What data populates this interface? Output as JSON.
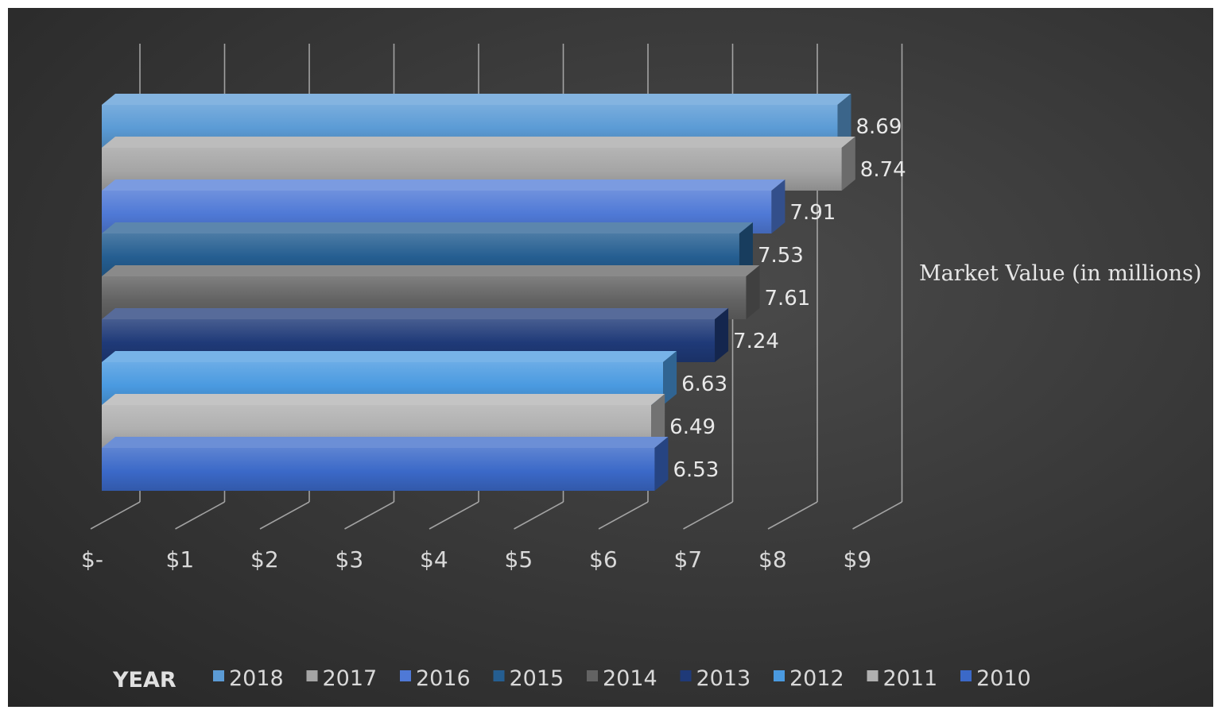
{
  "chart_data": {
    "type": "bar",
    "orientation": "horizontal",
    "style": "3d-clustered",
    "xlim": [
      0,
      9
    ],
    "x_ticks": [
      "$-",
      "$1",
      "$2",
      "$3",
      "$4",
      "$5",
      "$6",
      "$7",
      "$8",
      "$9"
    ],
    "axis_title": "Market Value (in millions)",
    "legend_title": "YEAR",
    "legend_position": "bottom",
    "grid": true,
    "series": [
      {
        "name": "2018",
        "value": 8.69,
        "label": "8.69",
        "color": "#5b9bd5"
      },
      {
        "name": "2017",
        "value": 8.74,
        "label": "8.74",
        "color": "#a5a5a5"
      },
      {
        "name": "2016",
        "value": 7.91,
        "label": "7.91",
        "color": "#4f79d6"
      },
      {
        "name": "2015",
        "value": 7.53,
        "label": "7.53",
        "color": "#255e91"
      },
      {
        "name": "2014",
        "value": 7.61,
        "label": "7.61",
        "color": "#636363"
      },
      {
        "name": "2013",
        "value": 7.24,
        "label": "7.24",
        "color": "#1f3a78"
      },
      {
        "name": "2012",
        "value": 6.63,
        "label": "6.63",
        "color": "#4a9ae0"
      },
      {
        "name": "2011",
        "value": 6.49,
        "label": "6.49",
        "color": "#b0b0b0"
      },
      {
        "name": "2010",
        "value": 6.53,
        "label": "6.53",
        "color": "#3b69c8"
      }
    ]
  }
}
